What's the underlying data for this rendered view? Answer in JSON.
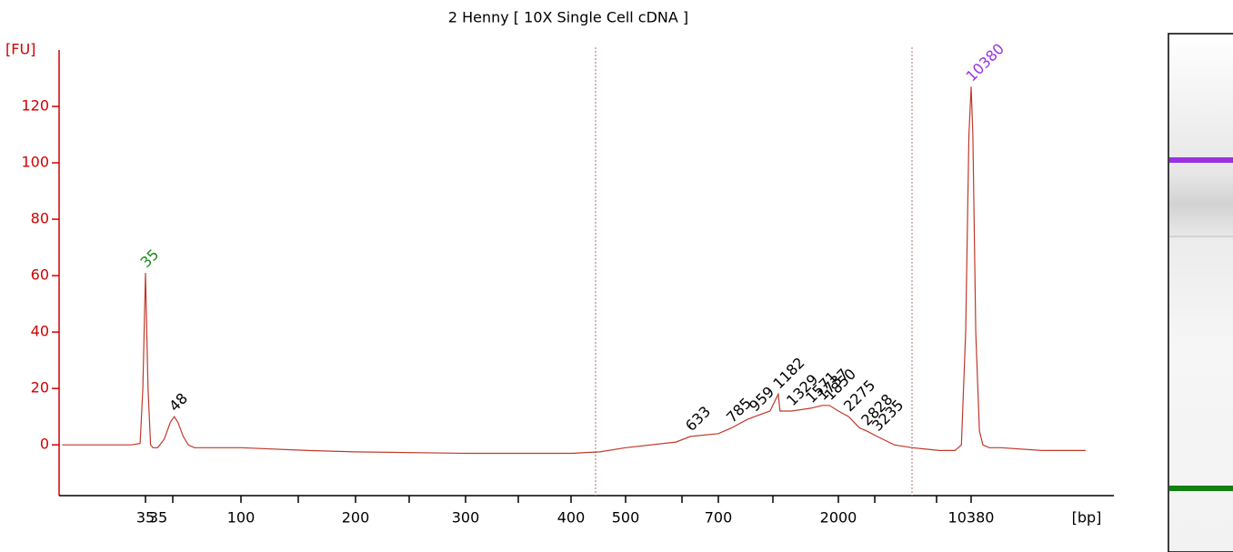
{
  "chart_data": {
    "type": "line",
    "title": "2 Henny  [ 10X Single Cell cDNA ]",
    "y_label": "[FU]",
    "x_label": "[bp]",
    "ylim": [
      -18,
      140
    ],
    "yticks": [
      0,
      20,
      40,
      60,
      80,
      100,
      120
    ],
    "xticks": [
      35,
      35,
      100,
      null,
      200,
      null,
      300,
      null,
      400,
      500,
      null,
      700,
      null,
      2000,
      null,
      null,
      10380
    ],
    "series": [
      {
        "color": "#c0392b",
        "x": [
          14,
          30,
          33,
          34,
          35,
          36,
          37,
          38,
          40,
          43,
          46,
          48,
          50,
          53,
          56,
          60,
          80,
          100,
          150,
          200,
          300,
          400,
          450,
          500,
          600,
          633,
          700,
          785,
          900,
          959,
          1100,
          1182,
          1200,
          1329,
          1571,
          1737,
          1850,
          2000,
          2275,
          2600,
          2828,
          3235,
          4000,
          5000,
          7000,
          8500,
          9200,
          9700,
          10100,
          10380,
          10600,
          11000,
          11500,
          12000,
          13000,
          15000,
          25000,
          43000
        ],
        "values": [
          0,
          0,
          0.5,
          20,
          61,
          20,
          0,
          -1,
          -1,
          2,
          8,
          10,
          8,
          3,
          0,
          -1,
          -1,
          -1,
          -2,
          -2.5,
          -3,
          -3,
          -2.5,
          -1,
          1,
          3,
          4,
          6,
          9,
          10,
          12,
          18,
          12,
          12,
          13,
          14,
          14,
          12,
          10,
          6,
          5,
          3,
          0,
          -1,
          -2,
          -2,
          0,
          40,
          110,
          127,
          110,
          40,
          5,
          0,
          -1,
          -1,
          -2,
          -2
        ]
      }
    ],
    "peaks": [
      {
        "x": 35,
        "value": 61,
        "color": "#1a8a1a"
      },
      {
        "x": 48,
        "value": 10,
        "color": "#000000"
      },
      {
        "x": 633,
        "value": 3,
        "color": "#000000"
      },
      {
        "x": 785,
        "value": 6,
        "color": "#000000"
      },
      {
        "x": 959,
        "value": 10,
        "color": "#000000"
      },
      {
        "x": 1182,
        "value": 18,
        "color": "#000000"
      },
      {
        "x": 1329,
        "value": 12,
        "color": "#000000"
      },
      {
        "x": 1571,
        "value": 13,
        "color": "#000000"
      },
      {
        "x": 1737,
        "value": 14,
        "color": "#000000"
      },
      {
        "x": 1850,
        "value": 14,
        "color": "#000000"
      },
      {
        "x": 2275,
        "value": 10,
        "color": "#000000"
      },
      {
        "x": 2828,
        "value": 5,
        "color": "#000000"
      },
      {
        "x": 3235,
        "value": 3,
        "color": "#000000"
      },
      {
        "x": 10380,
        "value": 127,
        "color": "#9b30e0"
      }
    ]
  }
}
